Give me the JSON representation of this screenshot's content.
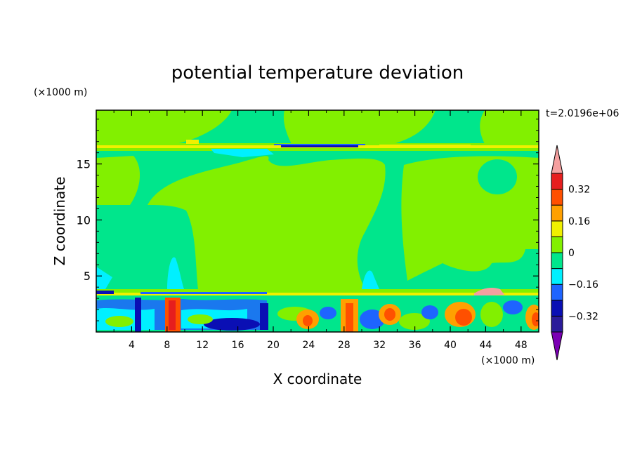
{
  "chart_data": {
    "type": "heatmap",
    "title": "potential temperature deviation",
    "xlabel": "X coordinate",
    "ylabel": "Z coordinate",
    "x_unit": "(×1000 m)",
    "y_unit": "(×1000 m)",
    "time_label": "t=2.0196e+06",
    "xlim": [
      0,
      50
    ],
    "ylim": [
      0,
      19.8
    ],
    "x_ticks": [
      4,
      8,
      12,
      16,
      20,
      24,
      28,
      32,
      36,
      40,
      44,
      48
    ],
    "y_ticks": [
      5,
      10,
      15
    ],
    "colorbar": {
      "levels": [
        -0.4,
        -0.32,
        -0.24,
        -0.16,
        -0.08,
        0,
        0.08,
        0.16,
        0.24,
        0.32,
        0.4
      ],
      "tick_labels": [
        {
          "value": 0.32,
          "label": "0.32"
        },
        {
          "value": 0.16,
          "label": "0.16"
        },
        {
          "value": 0,
          "label": "0"
        },
        {
          "value": -0.16,
          "label": "−0.16"
        },
        {
          "value": -0.32,
          "label": "−0.32"
        }
      ],
      "colors": [
        "#7b00b4",
        "#2b1c9a",
        "#0a0fb4",
        "#1e64ff",
        "#00f0ff",
        "#00e68c",
        "#82f000",
        "#f0f000",
        "#ffa000",
        "#ff5000",
        "#e61e1e",
        "#f5a0a0"
      ]
    }
  }
}
